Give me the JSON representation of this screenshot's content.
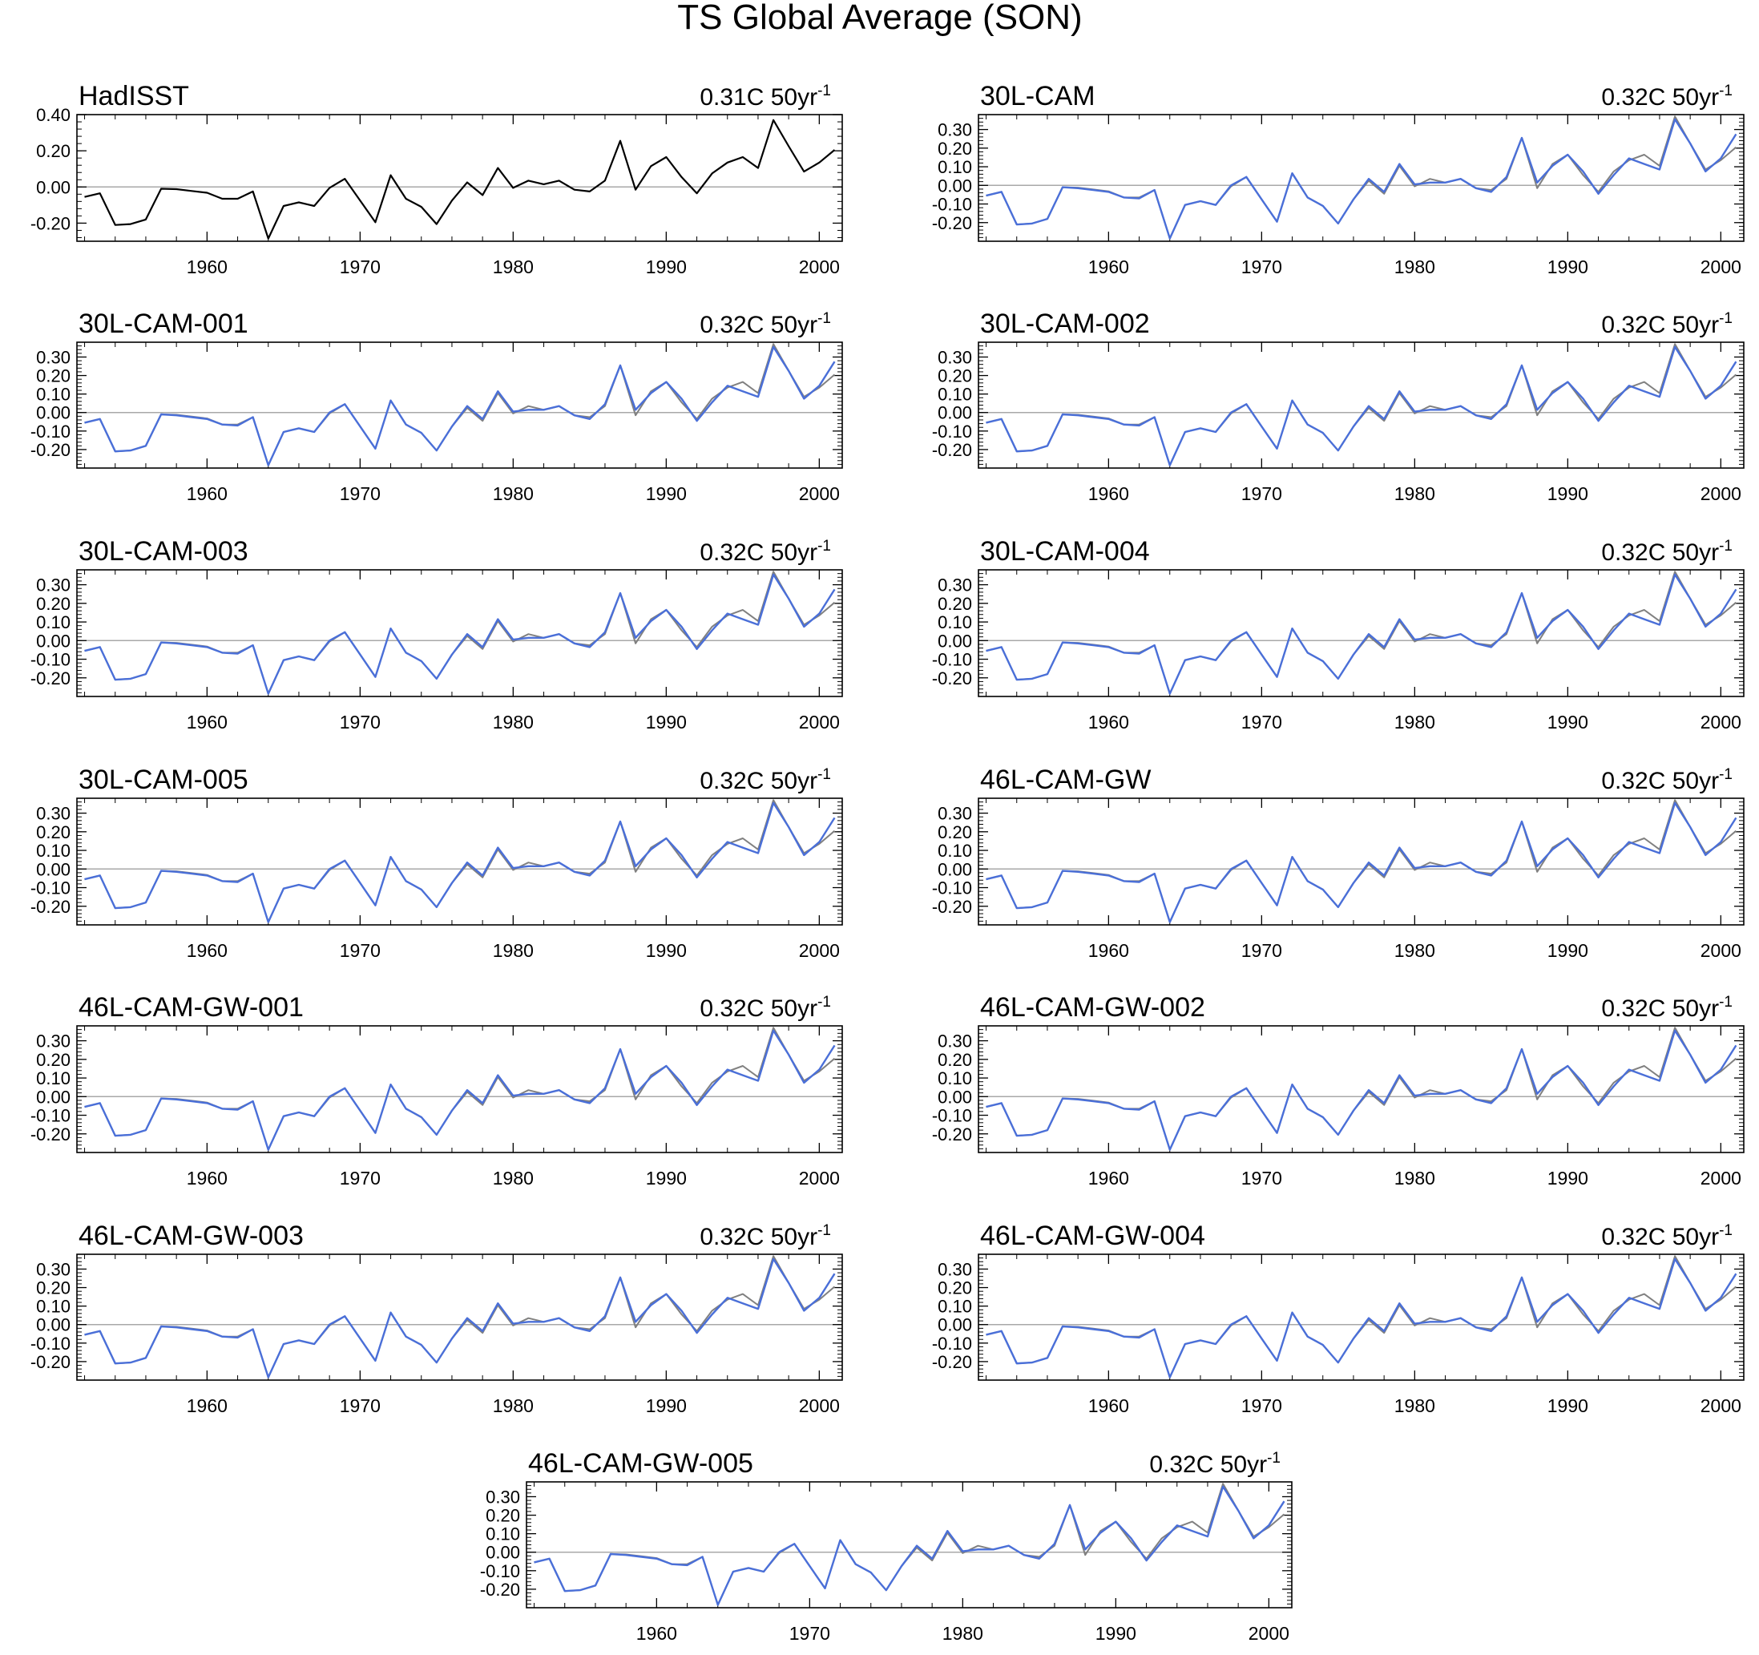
{
  "figure": {
    "title": "TS Global Average (SON)"
  },
  "colors": {
    "observed": "#000000",
    "model": "#4a6fd8",
    "reference": "#808080",
    "zero_line": "#a8a8a8",
    "frame": "#000000"
  },
  "chart_data": {
    "type": "line",
    "x_start": 1952,
    "x_end": 2001,
    "xlim": [
      1951.5,
      2001.5
    ],
    "x_ticks": [
      "1960",
      "1970",
      "1980",
      "1990",
      "2000"
    ],
    "grid": false,
    "hadisst": [
      -0.055,
      -0.035,
      -0.21,
      -0.205,
      -0.18,
      -0.01,
      -0.012,
      -0.022,
      -0.032,
      -0.065,
      -0.065,
      -0.025,
      -0.285,
      -0.105,
      -0.085,
      -0.105,
      -0.005,
      0.045,
      -0.075,
      -0.195,
      0.065,
      -0.065,
      -0.11,
      -0.205,
      -0.075,
      0.025,
      -0.045,
      0.105,
      -0.005,
      0.035,
      0.015,
      0.035,
      -0.015,
      -0.025,
      0.035,
      0.255,
      -0.015,
      0.115,
      0.165,
      0.055,
      -0.035,
      0.075,
      0.135,
      0.165,
      0.105,
      0.37,
      0.225,
      0.085,
      0.135,
      0.205
    ],
    "model": [
      -0.055,
      -0.035,
      -0.21,
      -0.205,
      -0.18,
      -0.01,
      -0.015,
      -0.025,
      -0.035,
      -0.065,
      -0.07,
      -0.025,
      -0.285,
      -0.105,
      -0.085,
      -0.105,
      0.0,
      0.045,
      -0.075,
      -0.195,
      0.065,
      -0.065,
      -0.11,
      -0.205,
      -0.075,
      0.035,
      -0.035,
      0.115,
      0.005,
      0.015,
      0.015,
      0.035,
      -0.015,
      -0.035,
      0.045,
      0.255,
      0.015,
      0.105,
      0.165,
      0.075,
      -0.045,
      0.055,
      0.145,
      0.115,
      0.085,
      0.355,
      0.225,
      0.075,
      0.145,
      0.275
    ],
    "reference": [
      -0.055,
      -0.035,
      -0.21,
      -0.205,
      -0.18,
      -0.01,
      -0.012,
      -0.022,
      -0.032,
      -0.065,
      -0.065,
      -0.025,
      -0.285,
      -0.105,
      -0.085,
      -0.105,
      -0.005,
      0.045,
      -0.075,
      -0.195,
      0.065,
      -0.065,
      -0.11,
      -0.205,
      -0.075,
      0.025,
      -0.045,
      0.105,
      -0.005,
      0.035,
      0.015,
      0.035,
      -0.015,
      -0.025,
      0.035,
      0.255,
      -0.015,
      0.115,
      0.165,
      0.055,
      -0.035,
      0.075,
      0.135,
      0.165,
      0.105,
      0.37,
      0.225,
      0.085,
      0.135,
      0.205
    ],
    "panels": [
      {
        "title": "HadISST",
        "trend": "0.31C 50yr",
        "trend_exp": "-1",
        "series": "hadisst",
        "ylim": [
          -0.3,
          0.4
        ],
        "y_ticks": [
          -0.2,
          0.0,
          0.2,
          0.4
        ],
        "y_tick_labels": [
          "-0.20",
          "0.00",
          "0.20",
          "0.40"
        ]
      },
      {
        "title": "30L-CAM",
        "trend": "0.32C 50yr",
        "trend_exp": "-1",
        "series": "model",
        "ylim": [
          -0.3,
          0.38
        ],
        "y_ticks": [
          -0.2,
          -0.1,
          0.0,
          0.1,
          0.2,
          0.3
        ],
        "y_tick_labels": [
          "-0.20",
          "-0.10",
          "0.00",
          "0.10",
          "0.20",
          "0.30"
        ]
      },
      {
        "title": "30L-CAM-001",
        "trend": "0.32C 50yr",
        "trend_exp": "-1",
        "series": "model",
        "ylim": [
          -0.3,
          0.38
        ],
        "y_ticks": [
          -0.2,
          -0.1,
          0.0,
          0.1,
          0.2,
          0.3
        ],
        "y_tick_labels": [
          "-0.20",
          "-0.10",
          "0.00",
          "0.10",
          "0.20",
          "0.30"
        ]
      },
      {
        "title": "30L-CAM-002",
        "trend": "0.32C 50yr",
        "trend_exp": "-1",
        "series": "model",
        "ylim": [
          -0.3,
          0.38
        ],
        "y_ticks": [
          -0.2,
          -0.1,
          0.0,
          0.1,
          0.2,
          0.3
        ],
        "y_tick_labels": [
          "-0.20",
          "-0.10",
          "0.00",
          "0.10",
          "0.20",
          "0.30"
        ]
      },
      {
        "title": "30L-CAM-003",
        "trend": "0.32C 50yr",
        "trend_exp": "-1",
        "series": "model",
        "ylim": [
          -0.3,
          0.38
        ],
        "y_ticks": [
          -0.2,
          -0.1,
          0.0,
          0.1,
          0.2,
          0.3
        ],
        "y_tick_labels": [
          "-0.20",
          "-0.10",
          "0.00",
          "0.10",
          "0.20",
          "0.30"
        ]
      },
      {
        "title": "30L-CAM-004",
        "trend": "0.32C 50yr",
        "trend_exp": "-1",
        "series": "model",
        "ylim": [
          -0.3,
          0.38
        ],
        "y_ticks": [
          -0.2,
          -0.1,
          0.0,
          0.1,
          0.2,
          0.3
        ],
        "y_tick_labels": [
          "-0.20",
          "-0.10",
          "0.00",
          "0.10",
          "0.20",
          "0.30"
        ]
      },
      {
        "title": "30L-CAM-005",
        "trend": "0.32C 50yr",
        "trend_exp": "-1",
        "series": "model",
        "ylim": [
          -0.3,
          0.38
        ],
        "y_ticks": [
          -0.2,
          -0.1,
          0.0,
          0.1,
          0.2,
          0.3
        ],
        "y_tick_labels": [
          "-0.20",
          "-0.10",
          "0.00",
          "0.10",
          "0.20",
          "0.30"
        ]
      },
      {
        "title": "46L-CAM-GW",
        "trend": "0.32C 50yr",
        "trend_exp": "-1",
        "series": "model",
        "ylim": [
          -0.3,
          0.38
        ],
        "y_ticks": [
          -0.2,
          -0.1,
          0.0,
          0.1,
          0.2,
          0.3
        ],
        "y_tick_labels": [
          "-0.20",
          "-0.10",
          "0.00",
          "0.10",
          "0.20",
          "0.30"
        ]
      },
      {
        "title": "46L-CAM-GW-001",
        "trend": "0.32C 50yr",
        "trend_exp": "-1",
        "series": "model",
        "ylim": [
          -0.3,
          0.38
        ],
        "y_ticks": [
          -0.2,
          -0.1,
          0.0,
          0.1,
          0.2,
          0.3
        ],
        "y_tick_labels": [
          "-0.20",
          "-0.10",
          "0.00",
          "0.10",
          "0.20",
          "0.30"
        ]
      },
      {
        "title": "46L-CAM-GW-002",
        "trend": "0.32C 50yr",
        "trend_exp": "-1",
        "series": "model",
        "ylim": [
          -0.3,
          0.38
        ],
        "y_ticks": [
          -0.2,
          -0.1,
          0.0,
          0.1,
          0.2,
          0.3
        ],
        "y_tick_labels": [
          "-0.20",
          "-0.10",
          "0.00",
          "0.10",
          "0.20",
          "0.30"
        ]
      },
      {
        "title": "46L-CAM-GW-003",
        "trend": "0.32C 50yr",
        "trend_exp": "-1",
        "series": "model",
        "ylim": [
          -0.3,
          0.38
        ],
        "y_ticks": [
          -0.2,
          -0.1,
          0.0,
          0.1,
          0.2,
          0.3
        ],
        "y_tick_labels": [
          "-0.20",
          "-0.10",
          "0.00",
          "0.10",
          "0.20",
          "0.30"
        ]
      },
      {
        "title": "46L-CAM-GW-004",
        "trend": "0.32C 50yr",
        "trend_exp": "-1",
        "series": "model",
        "ylim": [
          -0.3,
          0.38
        ],
        "y_ticks": [
          -0.2,
          -0.1,
          0.0,
          0.1,
          0.2,
          0.3
        ],
        "y_tick_labels": [
          "-0.20",
          "-0.10",
          "0.00",
          "0.10",
          "0.20",
          "0.30"
        ]
      },
      {
        "title": "46L-CAM-GW-005",
        "trend": "0.32C 50yr",
        "trend_exp": "-1",
        "series": "model",
        "ylim": [
          -0.3,
          0.38
        ],
        "y_ticks": [
          -0.2,
          -0.1,
          0.0,
          0.1,
          0.2,
          0.3
        ],
        "y_tick_labels": [
          "-0.20",
          "-0.10",
          "0.00",
          "0.10",
          "0.20",
          "0.30"
        ]
      }
    ]
  }
}
